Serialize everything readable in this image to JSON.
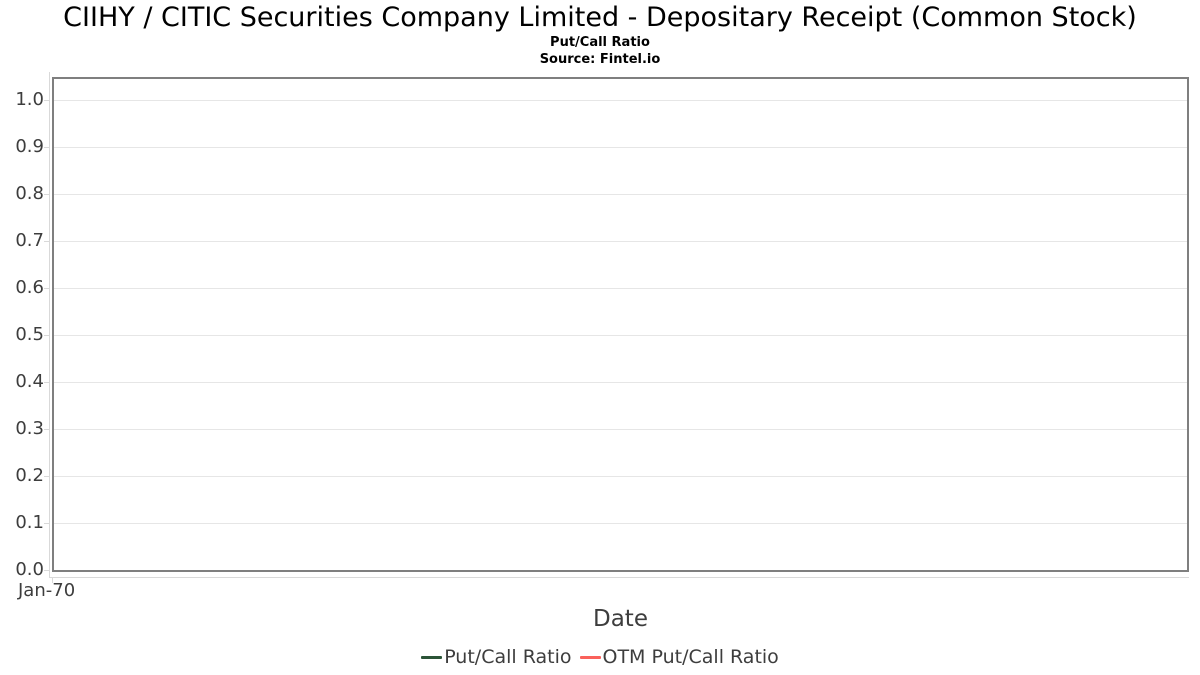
{
  "header": {
    "title": "CIIHY / CITIC Securities Company Limited - Depositary Receipt (Common Stock)",
    "subtitle": "Put/Call Ratio",
    "source": "Source: Fintel.io"
  },
  "chart_data": {
    "type": "line",
    "title": "CIIHY / CITIC Securities Company Limited - Depositary Receipt (Common Stock)",
    "subtitle": "Put/Call Ratio",
    "source": "Source: Fintel.io",
    "xlabel": "Date",
    "ylabel": "",
    "ylim": [
      0.0,
      1.05
    ],
    "y_tick_labels": [
      "0.0",
      "0.1",
      "0.2",
      "0.3",
      "0.4",
      "0.5",
      "0.6",
      "0.7",
      "0.8",
      "0.9",
      "1.0"
    ],
    "x_tick_labels": [
      "Jan-70"
    ],
    "grid": "horizontal-only",
    "legend_position": "bottom-center",
    "series": [
      {
        "name": "Put/Call Ratio",
        "color": "#2b5437",
        "x": [],
        "values": []
      },
      {
        "name": "OTM Put/Call Ratio",
        "color": "#fa615b",
        "x": [],
        "values": []
      }
    ]
  },
  "colors": {
    "title_text": "#000000",
    "plot_border": "#7f7f7f",
    "gridline": "#e6e6e6",
    "axis_line": "#d9d9d9",
    "tick_label": "#3d3d3d"
  }
}
